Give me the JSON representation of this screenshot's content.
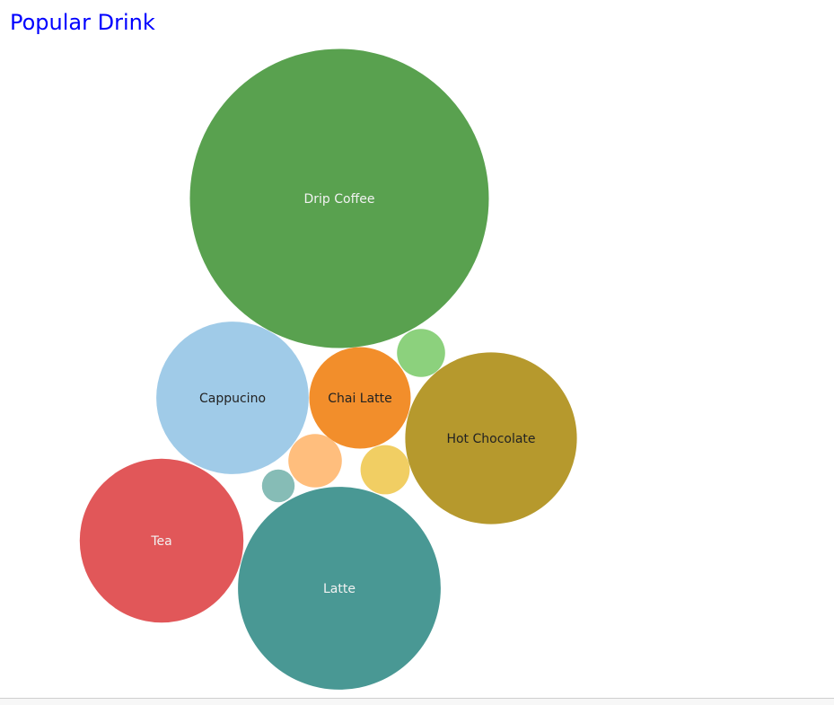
{
  "chart_data": {
    "type": "bubble",
    "title": "Popular Drink",
    "size_measure": "relative bubble area (no scale printed)",
    "bubbles": [
      {
        "label": "Drip Coffee",
        "value": 100,
        "color": "#59a14f",
        "label_color": "#f2f2f2"
      },
      {
        "label": "Hot Chocolate",
        "value": 33,
        "color": "#b6992d",
        "label_color": "#222222"
      },
      {
        "label": "Latte",
        "value": 46,
        "color": "#499894",
        "label_color": "#f2f2f2"
      },
      {
        "label": "Cappucino",
        "value": 26,
        "color": "#a0cbe8",
        "label_color": "#222222"
      },
      {
        "label": "Tea",
        "value": 30,
        "color": "#e15759",
        "label_color": "#f2f2f2"
      },
      {
        "label": "Chai Latte",
        "value": 11.5,
        "color": "#f28e2b",
        "label_color": "#222222"
      },
      {
        "label": "",
        "value": 2.6,
        "color": "#8cd17d",
        "label_color": "#222222"
      },
      {
        "label": "",
        "value": 3.2,
        "color": "#ffbe7d",
        "label_color": "#222222"
      },
      {
        "label": "",
        "value": 2.7,
        "color": "#f1ce63",
        "label_color": "#222222"
      },
      {
        "label": "",
        "value": 1.2,
        "color": "#86bcb6",
        "label_color": "#222222"
      }
    ]
  }
}
